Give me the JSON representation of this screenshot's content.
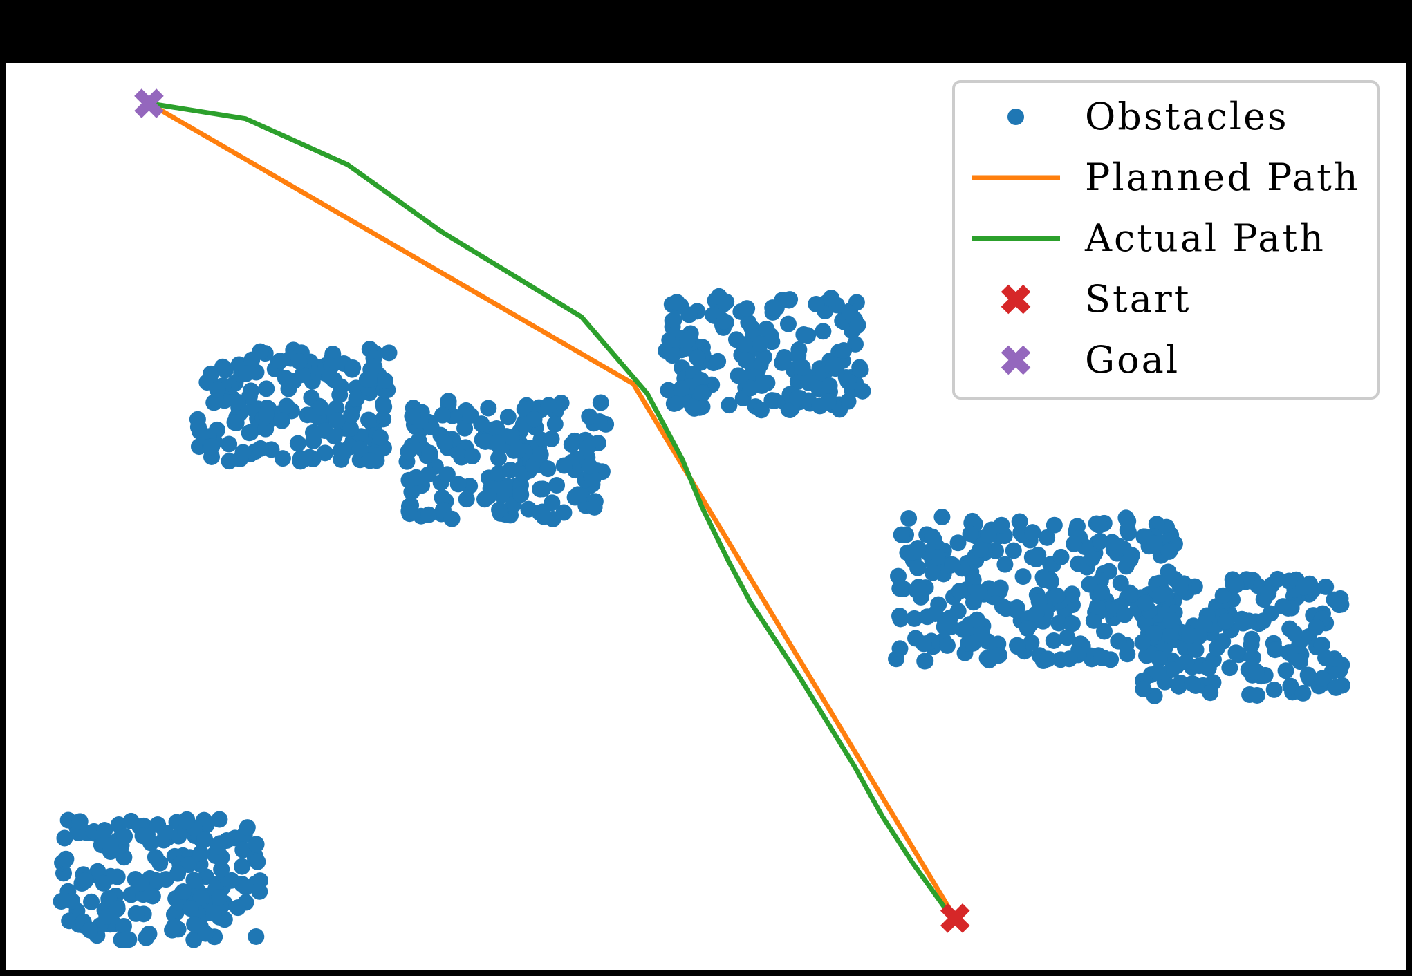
{
  "chart_data": {
    "type": "scatter",
    "title": "",
    "xlabel": "",
    "ylabel": "",
    "xlim": [
      0,
      100
    ],
    "ylim": [
      0,
      65
    ],
    "grid": false,
    "axes_visible": false,
    "legend": {
      "placement": "top-right",
      "entries": [
        {
          "label": "Obstacles",
          "marker": "circle",
          "color": "#1f77b4"
        },
        {
          "label": "Planned Path",
          "marker": "line",
          "color": "#ff7f0e"
        },
        {
          "label": "Actual Path",
          "marker": "line",
          "color": "#2ca02c"
        },
        {
          "label": "Start",
          "marker": "x",
          "color": "#d62728"
        },
        {
          "label": "Goal",
          "marker": "x",
          "color": "#9467bd"
        }
      ]
    },
    "obstacle_clusters": [
      {
        "xmin": 3.8,
        "xmax": 18.2,
        "ymin": 2.1,
        "ymax": 10.8,
        "count": 180
      },
      {
        "xmin": 13.6,
        "xmax": 27.5,
        "ymin": 36.4,
        "ymax": 44.5,
        "count": 170
      },
      {
        "xmin": 28.6,
        "xmax": 42.9,
        "ymin": 32.3,
        "ymax": 41.0,
        "count": 170
      },
      {
        "xmin": 47.1,
        "xmax": 61.2,
        "ymin": 40.1,
        "ymax": 48.3,
        "count": 170
      },
      {
        "xmin": 63.5,
        "xmax": 83.6,
        "ymin": 22.1,
        "ymax": 32.5,
        "count": 260
      },
      {
        "xmin": 81.2,
        "xmax": 95.6,
        "ymin": 19.6,
        "ymax": 28.0,
        "count": 170
      }
    ],
    "series": [
      {
        "name": "Planned Path",
        "color": "#ff7f0e",
        "x": [
          10.2,
          44.8,
          67.8
        ],
        "y": [
          62.1,
          42.0,
          3.7
        ]
      },
      {
        "name": "Actual Path",
        "color": "#2ca02c",
        "x": [
          10.2,
          17.1,
          24.4,
          31.1,
          41.1,
          45.8,
          48.3,
          49.7,
          51.6,
          53.2,
          56.8,
          60.6,
          62.6,
          64.8,
          67.6
        ],
        "y": [
          62.1,
          61.0,
          57.7,
          52.9,
          46.8,
          41.3,
          36.6,
          33.2,
          29.3,
          26.3,
          20.8,
          14.6,
          11.0,
          7.6,
          3.7
        ]
      }
    ],
    "start": {
      "x": 67.8,
      "y": 3.7,
      "color": "#d62728"
    },
    "goal": {
      "x": 10.2,
      "y": 62.1,
      "color": "#9467bd"
    }
  }
}
